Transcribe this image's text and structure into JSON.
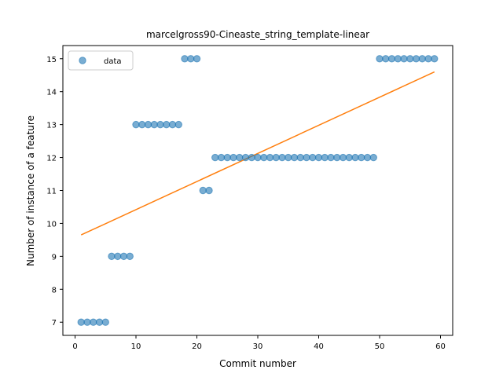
{
  "chart_data": {
    "type": "scatter",
    "title": "marcelgross90-Cineaste_string_template-linear",
    "xlabel": "Commit number",
    "ylabel": "Number of instance of a feature",
    "xlim": [
      -2,
      62
    ],
    "ylim": [
      6.6,
      15.4
    ],
    "xticks": [
      0,
      10,
      20,
      30,
      40,
      50,
      60
    ],
    "yticks": [
      7,
      8,
      9,
      10,
      11,
      12,
      13,
      14,
      15
    ],
    "grid": false,
    "legend": {
      "placement": "top-left",
      "entries": [
        "data"
      ]
    },
    "series": [
      {
        "name": "data",
        "kind": "scatter",
        "color": "#1f77b4",
        "x": [
          1,
          2,
          3,
          4,
          5,
          6,
          7,
          8,
          9,
          10,
          11,
          12,
          13,
          14,
          15,
          16,
          17,
          18,
          19,
          20,
          21,
          22,
          23,
          24,
          25,
          26,
          27,
          28,
          29,
          30,
          31,
          32,
          33,
          34,
          35,
          36,
          37,
          38,
          39,
          40,
          41,
          42,
          43,
          44,
          45,
          46,
          47,
          48,
          49,
          50,
          51,
          52,
          53,
          54,
          55,
          56,
          57,
          58,
          59
        ],
        "y": [
          7,
          7,
          7,
          7,
          7,
          9,
          9,
          9,
          9,
          13,
          13,
          13,
          13,
          13,
          13,
          13,
          13,
          15,
          15,
          15,
          11,
          11,
          12,
          12,
          12,
          12,
          12,
          12,
          12,
          12,
          12,
          12,
          12,
          12,
          12,
          12,
          12,
          12,
          12,
          12,
          12,
          12,
          12,
          12,
          12,
          12,
          12,
          12,
          12,
          15,
          15,
          15,
          15,
          15,
          15,
          15,
          15,
          15,
          15
        ]
      },
      {
        "kind": "fit-line",
        "color": "#ff7f0e",
        "x": [
          1,
          59
        ],
        "y": [
          9.65,
          14.6
        ]
      }
    ]
  }
}
